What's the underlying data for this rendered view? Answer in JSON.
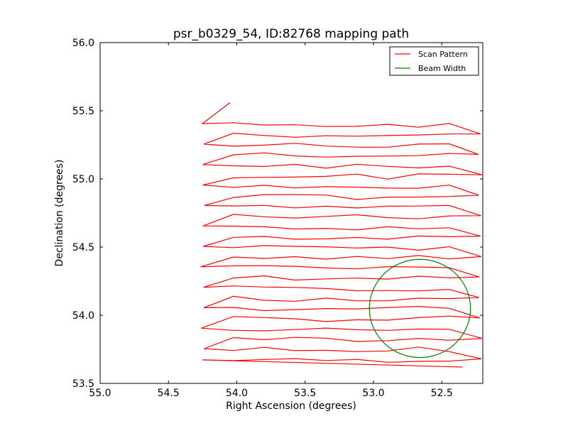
{
  "chart_data": {
    "type": "line",
    "title": "psr_b0329_54, ID:82768 mapping path",
    "xlabel": "Right Ascension (degrees)",
    "ylabel": "Declination (degrees)",
    "xlim": [
      55.0,
      52.2
    ],
    "ylim": [
      53.5,
      56.0
    ],
    "x_reversed": true,
    "xticks": [
      55.0,
      54.5,
      54.0,
      53.5,
      53.0,
      52.5
    ],
    "xtick_labels": [
      "55.0",
      "54.5",
      "54.0",
      "53.5",
      "53.0",
      "52.5"
    ],
    "yticks": [
      53.5,
      54.0,
      54.5,
      55.0,
      55.5,
      56.0
    ],
    "ytick_labels": [
      "53.5",
      "54.0",
      "54.5",
      "55.0",
      "55.5",
      "56.0"
    ],
    "grid": false,
    "legend": "top-right",
    "series": [
      {
        "name": "Scan Pattern",
        "color": "#ff0000",
        "kind": "line",
        "scan": {
          "ra_start": 54.25,
          "ra_end": 52.22,
          "dec_start": 53.68,
          "dec_step": 0.075,
          "rows": 24,
          "first_point": [
            52.35,
            53.62
          ],
          "last_point": [
            54.05,
            55.56
          ]
        }
      },
      {
        "name": "Beam Width",
        "color": "#008000",
        "kind": "circle",
        "center": [
          52.66,
          54.05
        ],
        "radius_ra": 0.37,
        "radius_dec": 0.36
      }
    ]
  }
}
